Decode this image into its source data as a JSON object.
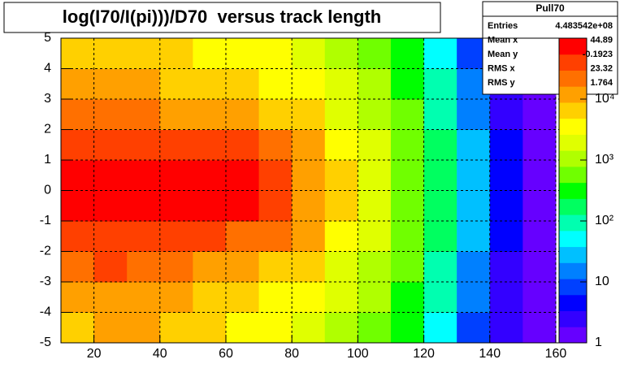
{
  "chart_data": {
    "type": "heatmap",
    "title": "log(I70/I(pi)))/D70  versus track length",
    "xbins": [
      10,
      20,
      30,
      40,
      50,
      60,
      70,
      80,
      90,
      100,
      110,
      120,
      130,
      140,
      150,
      160
    ],
    "ybins": [
      -5,
      -4,
      -3,
      -2,
      -1,
      0,
      1,
      2,
      3,
      4,
      5
    ],
    "z": [
      [
        8000,
        10000,
        9000,
        7000,
        5000,
        4000,
        3000,
        2000,
        1200,
        600,
        250,
        60,
        10,
        2,
        1
      ],
      [
        12000,
        16000,
        14000,
        11000,
        8000,
        6000,
        4500,
        3000,
        1800,
        900,
        350,
        90,
        15,
        3,
        1
      ],
      [
        25000,
        30000,
        25000,
        18000,
        14000,
        11000,
        8000,
        5000,
        2500,
        1200,
        450,
        120,
        20,
        3,
        1
      ],
      [
        45000,
        50000,
        45000,
        35000,
        30000,
        28000,
        20000,
        9000,
        4000,
        1600,
        550,
        150,
        25,
        4,
        1
      ],
      [
        60000,
        65000,
        62000,
        58000,
        55000,
        55000,
        45000,
        15000,
        5000,
        2000,
        650,
        170,
        30,
        4,
        1
      ],
      [
        60000,
        65000,
        62000,
        58000,
        56000,
        55000,
        45000,
        15000,
        5000,
        2000,
        650,
        170,
        30,
        4,
        1
      ],
      [
        45000,
        50000,
        42000,
        35000,
        32000,
        30000,
        22000,
        9000,
        4000,
        1600,
        550,
        150,
        25,
        4,
        1
      ],
      [
        22000,
        28000,
        22000,
        15000,
        12000,
        10000,
        8000,
        5000,
        2500,
        1200,
        450,
        120,
        20,
        3,
        1
      ],
      [
        10000,
        14000,
        11000,
        8000,
        6500,
        5500,
        4500,
        3000,
        1800,
        900,
        350,
        90,
        15,
        3,
        1
      ],
      [
        6000,
        7000,
        6000,
        5000,
        4000,
        3500,
        3000,
        2000,
        1200,
        600,
        250,
        60,
        10,
        2,
        1
      ]
    ],
    "xlim": [
      10,
      161
    ],
    "ylim": [
      -5,
      5
    ],
    "zlim": [
      1,
      100000
    ],
    "zlog": true,
    "xticks": [
      20,
      40,
      60,
      80,
      100,
      120,
      140,
      160
    ],
    "yticks": [
      -5,
      -4,
      -3,
      -2,
      -1,
      0,
      1,
      2,
      3,
      4,
      5
    ],
    "zticks": [
      1,
      10,
      {
        "value": 100,
        "label": "10²"
      },
      {
        "value": 1000,
        "label": "10³"
      },
      {
        "value": 10000,
        "label": "10⁴"
      }
    ],
    "grid": true,
    "palette": [
      "#6600ff",
      "#3300ff",
      "#0000ff",
      "#0040ff",
      "#0080ff",
      "#00c0ff",
      "#00ffff",
      "#00ffb0",
      "#00ff60",
      "#00ff00",
      "#70ff00",
      "#b0ff00",
      "#e0ff00",
      "#ffff00",
      "#ffd000",
      "#ffa000",
      "#ff7000",
      "#ff4000",
      "#ff0000"
    ],
    "stats": {
      "name": "Pull70",
      "entries": [
        {
          "label": "Entries",
          "value": "4.483542e+08"
        },
        {
          "label": "Mean x",
          "value": "44.89"
        },
        {
          "label": "Mean y",
          "value": "-0.1923"
        },
        {
          "label": "RMS x",
          "value": "23.32"
        },
        {
          "label": "RMS y",
          "value": "1.764"
        }
      ]
    }
  }
}
